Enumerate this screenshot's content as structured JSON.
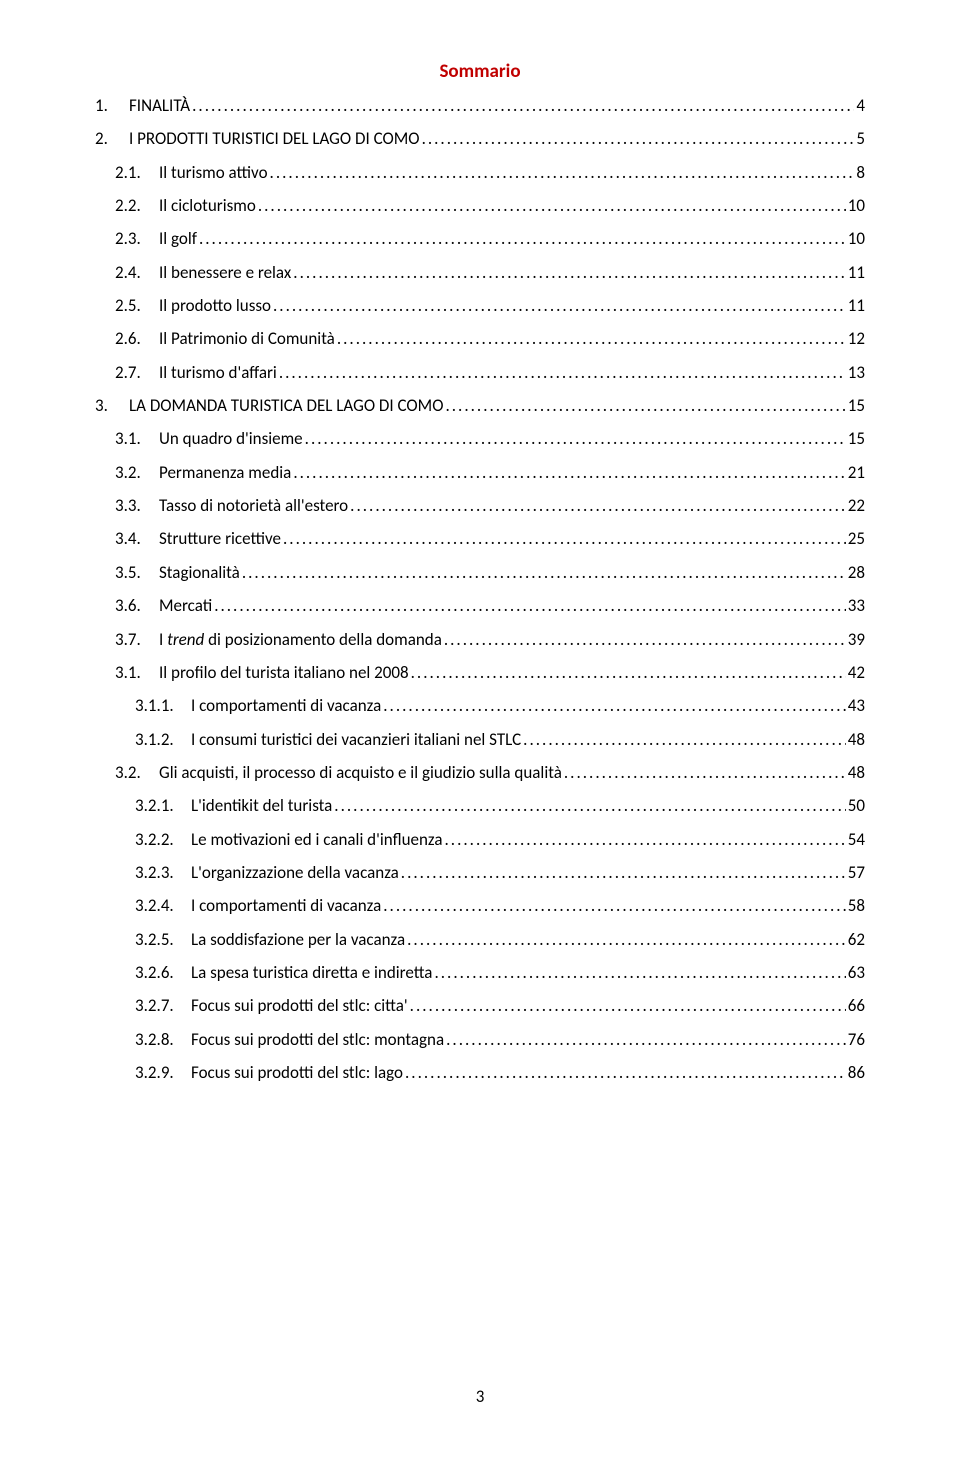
{
  "title": "Sommario",
  "pageNumber": "3",
  "colors": {
    "title": "#c00000",
    "text": "#000000",
    "background": "#ffffff"
  },
  "typography": {
    "title_fontsize": 19,
    "body_fontsize": 17,
    "font_family": "Calibri"
  },
  "entries": [
    {
      "level": 0,
      "num": "1.",
      "text": "FINALITÀ",
      "page": "4"
    },
    {
      "level": 0,
      "num": "2.",
      "text": "I PRODOTTI TURISTICI DEL LAGO DI COMO",
      "page": "5"
    },
    {
      "level": 1,
      "num": "2.1.",
      "text": "Il turismo attivo",
      "page": "8"
    },
    {
      "level": 1,
      "num": "2.2.",
      "text": "Il cicloturismo",
      "page": "10"
    },
    {
      "level": 1,
      "num": "2.3.",
      "text": "Il golf",
      "page": "10"
    },
    {
      "level": 1,
      "num": "2.4.",
      "text": "Il benessere e relax",
      "page": "11"
    },
    {
      "level": 1,
      "num": "2.5.",
      "text": "Il prodotto lusso",
      "page": "11"
    },
    {
      "level": 1,
      "num": "2.6.",
      "text": "Il Patrimonio di Comunità",
      "page": "12"
    },
    {
      "level": 1,
      "num": "2.7.",
      "text": "Il turismo d'affari",
      "page": "13"
    },
    {
      "level": 0,
      "num": "3.",
      "text": "LA DOMANDA TURISTICA DEL LAGO DI COMO",
      "page": "15"
    },
    {
      "level": 1,
      "num": "3.1.",
      "text": "Un quadro d'insieme",
      "page": "15"
    },
    {
      "level": 1,
      "num": "3.2.",
      "text": "Permanenza media",
      "page": "21"
    },
    {
      "level": 1,
      "num": "3.3.",
      "text": "Tasso di notorietà all'estero",
      "page": "22"
    },
    {
      "level": 1,
      "num": "3.4.",
      "text": "Strutture ricettive",
      "page": "25"
    },
    {
      "level": 1,
      "num": "3.5.",
      "text": "Stagionalità",
      "page": "28"
    },
    {
      "level": 1,
      "num": "3.6.",
      "text": "Mercati",
      "page": "33"
    },
    {
      "level": 1,
      "num": "3.7.",
      "text_pre": "I ",
      "text_italic": "trend",
      "text_post": " di posizionamento della domanda",
      "page": "39",
      "hasItalic": true
    },
    {
      "level": 1,
      "num": "3.1.",
      "text": "Il profilo del turista italiano nel 2008",
      "page": "42"
    },
    {
      "level": 2,
      "num": "3.1.1.",
      "text": "I comportamenti di vacanza",
      "page": "43"
    },
    {
      "level": 2,
      "num": "3.1.2.",
      "text": "I consumi turistici dei vacanzieri italiani nel STLC",
      "page": "48"
    },
    {
      "level": 1,
      "num": "3.2.",
      "text": "Gli acquisti, il processo di acquisto e il giudizio sulla qualità",
      "page": "48"
    },
    {
      "level": 2,
      "num": "3.2.1.",
      "text": "L'identikit del turista",
      "page": "50"
    },
    {
      "level": 2,
      "num": "3.2.2.",
      "text": "Le motivazioni ed i canali d'influenza",
      "page": "54"
    },
    {
      "level": 2,
      "num": "3.2.3.",
      "text": "L'organizzazione della vacanza",
      "page": "57"
    },
    {
      "level": 2,
      "num": "3.2.4.",
      "text": "I comportamenti di vacanza",
      "page": "58"
    },
    {
      "level": 2,
      "num": "3.2.5.",
      "text": "La soddisfazione per la vacanza",
      "page": "62"
    },
    {
      "level": 2,
      "num": "3.2.6.",
      "text": "La spesa turistica diretta e indiretta",
      "page": "63"
    },
    {
      "level": 2,
      "num": "3.2.7.",
      "text": "Focus sui prodotti del stlc: citta'",
      "page": "66"
    },
    {
      "level": 2,
      "num": "3.2.8.",
      "text": "Focus sui prodotti del stlc: montagna",
      "page": "76"
    },
    {
      "level": 2,
      "num": "3.2.9.",
      "text": "Focus sui prodotti del stlc: lago",
      "page": "86"
    }
  ]
}
